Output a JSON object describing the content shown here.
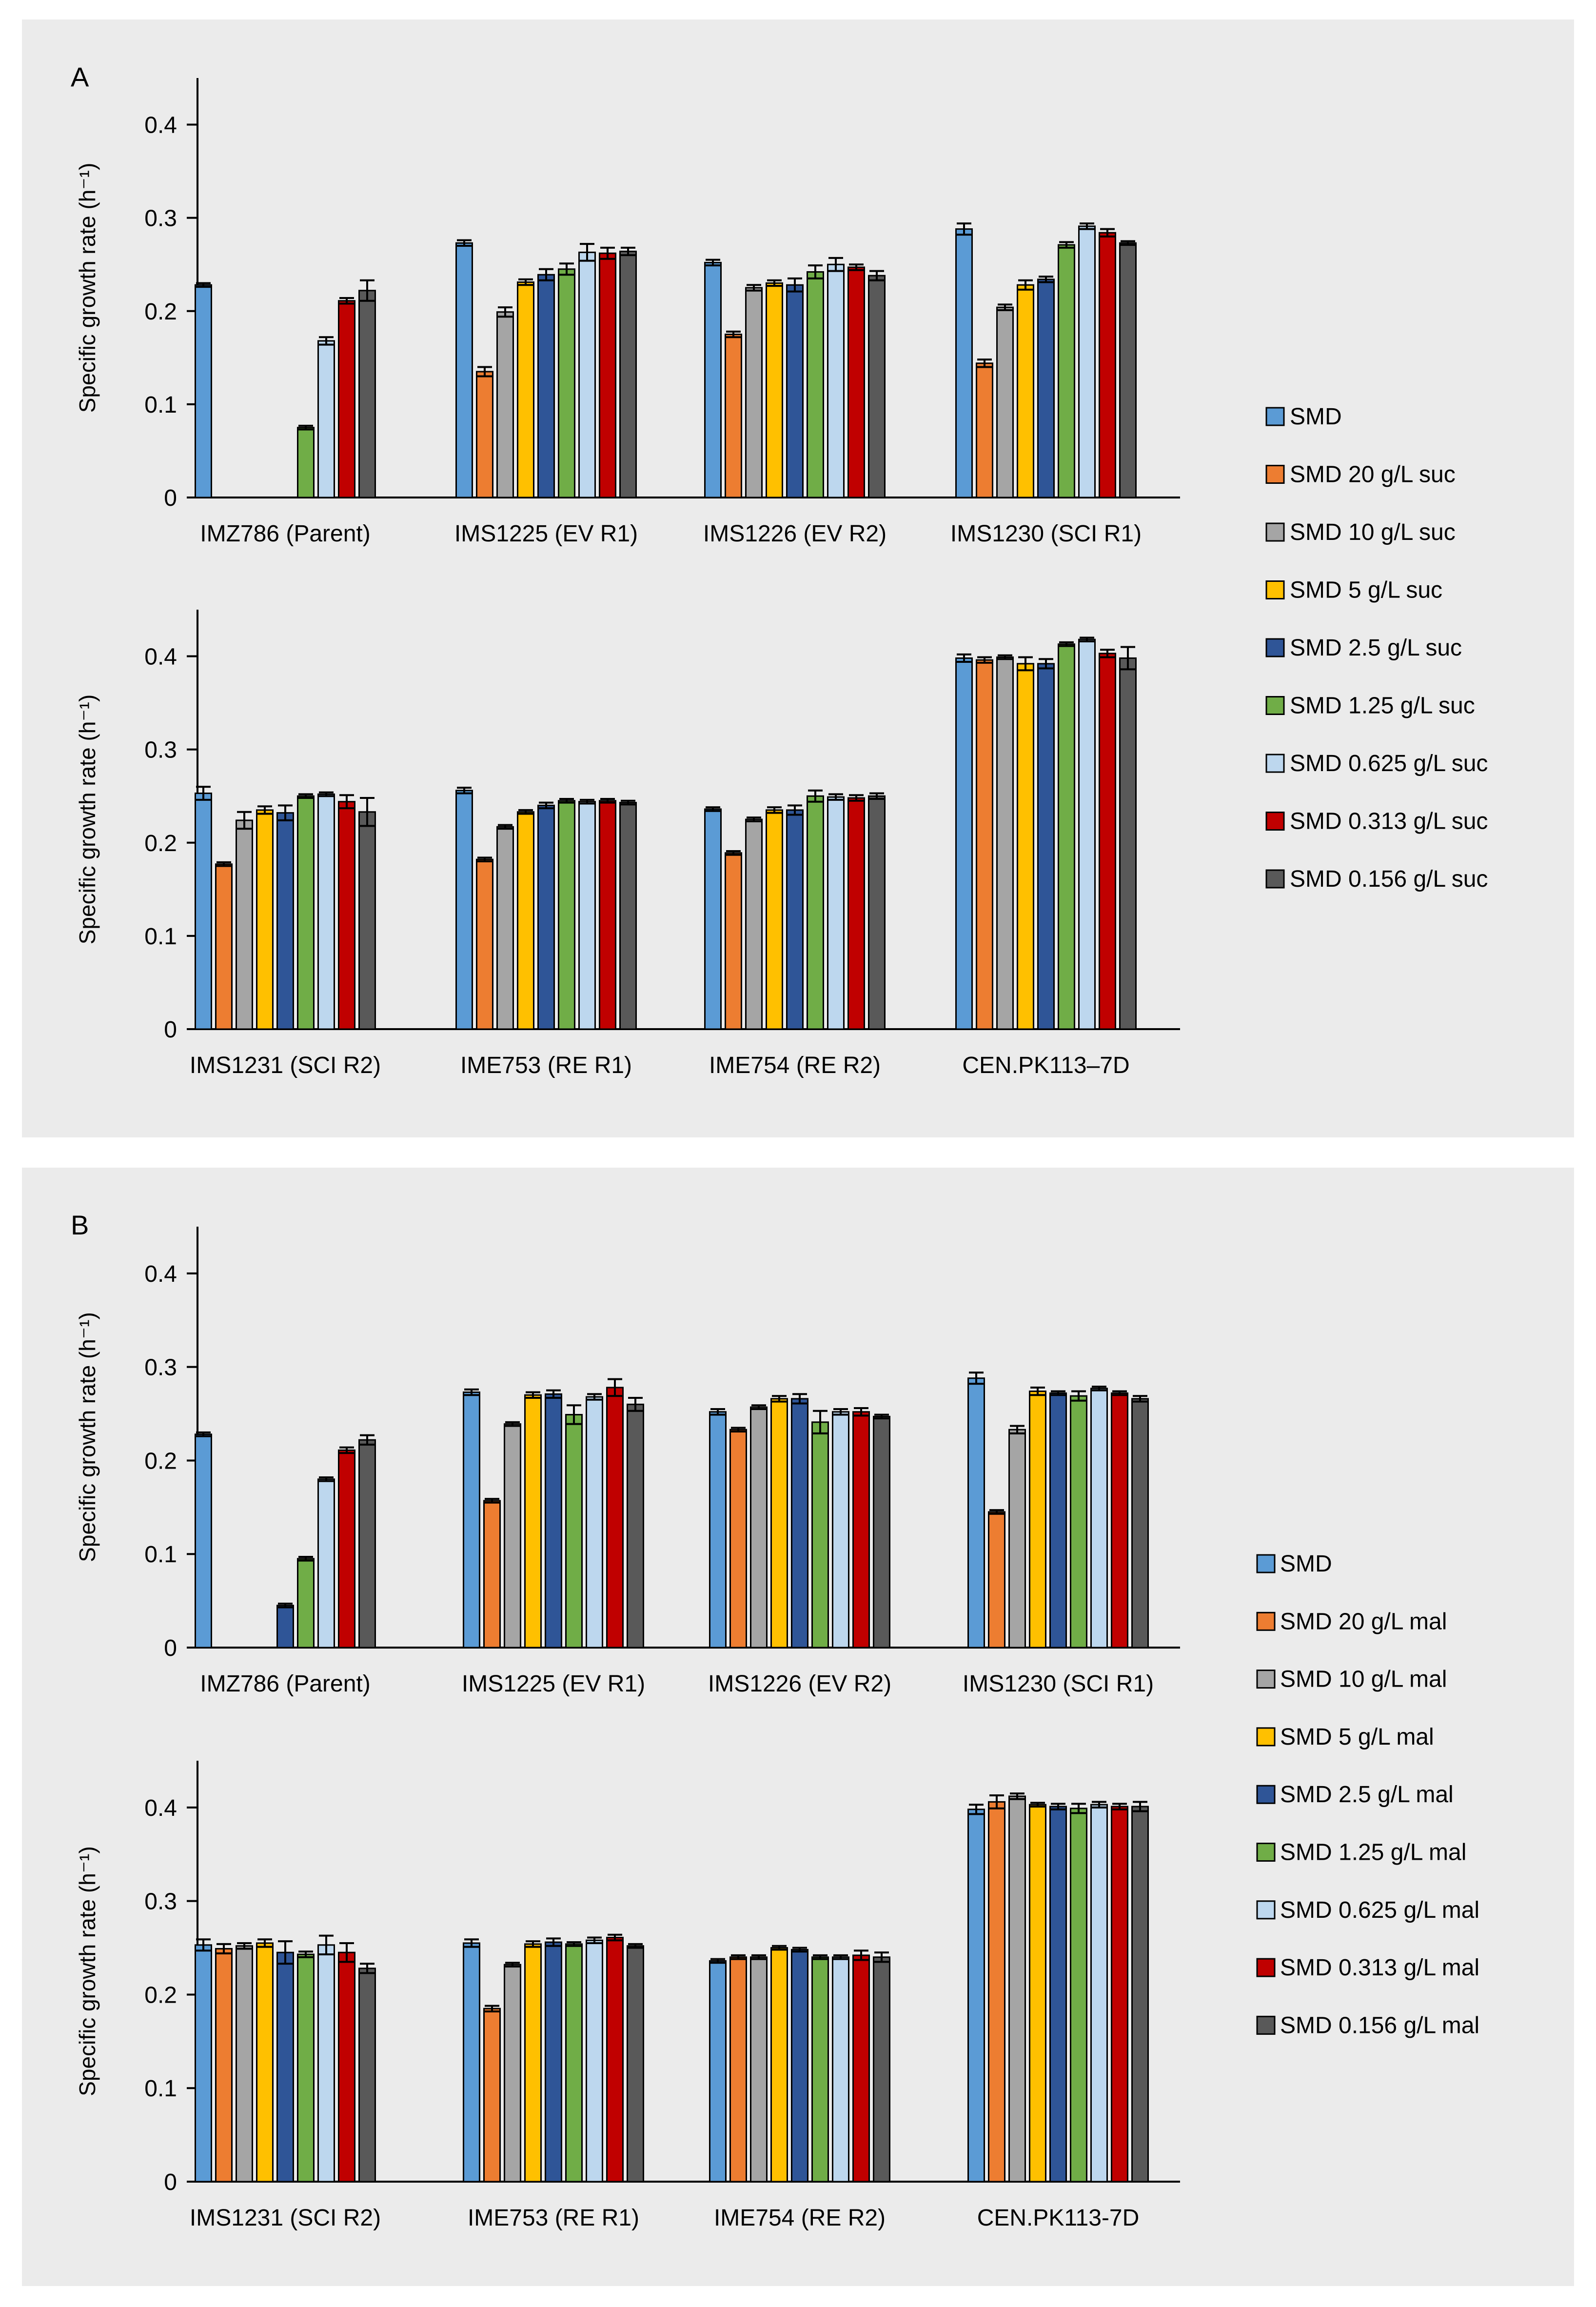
{
  "panels": [
    {
      "letter": "A",
      "legend": [
        "SMD",
        "SMD 20 g/L suc",
        "SMD 10 g/L suc",
        "SMD 5 g/L suc",
        "SMD 2.5 g/L suc",
        "SMD 1.25 g/L suc",
        "SMD 0.625 g/L suc",
        "SMD 0.313 g/L suc",
        "SMD 0.156 g/L suc"
      ],
      "charts": [
        {
          "type": "bar",
          "ylabel": "Specific growth rate (h⁻¹)",
          "ylim": [
            0,
            0.45
          ],
          "yticks": [
            "0",
            "0.1",
            "0.2",
            "0.3",
            "0.4"
          ],
          "categories": [
            "IMZ786 (Parent)",
            "IMS1225 (EV R1)",
            "IMS1226 (EV R2)",
            "IMS1230 (SCI R1)"
          ],
          "values": [
            [
              0.228,
              0,
              0,
              0,
              0,
              0.075,
              0.168,
              0.211,
              0.222
            ],
            [
              0.273,
              0.135,
              0.199,
              0.231,
              0.239,
              0.245,
              0.263,
              0.262,
              0.264
            ],
            [
              0.252,
              0.175,
              0.225,
              0.23,
              0.228,
              0.242,
              0.25,
              0.247,
              0.238
            ],
            [
              0.288,
              0.144,
              0.204,
              0.228,
              0.234,
              0.271,
              0.291,
              0.284,
              0.273
            ]
          ],
          "errors": [
            [
              0.002,
              0,
              0,
              0,
              0,
              0.002,
              0.004,
              0.003,
              0.011
            ],
            [
              0.003,
              0.005,
              0.005,
              0.003,
              0.006,
              0.006,
              0.009,
              0.006,
              0.004
            ],
            [
              0.003,
              0.003,
              0.003,
              0.003,
              0.007,
              0.007,
              0.007,
              0.003,
              0.005
            ],
            [
              0.006,
              0.004,
              0.003,
              0.005,
              0.003,
              0.003,
              0.003,
              0.004,
              0.002
            ]
          ]
        },
        {
          "type": "bar",
          "ylabel": "Specific growth rate (h⁻¹)",
          "ylim": [
            0,
            0.45
          ],
          "yticks": [
            "0",
            "0.1",
            "0.2",
            "0.3",
            "0.4"
          ],
          "categories": [
            "IMS1231 (SCI R2)",
            "IME753 (RE R1)",
            "IME754 (RE R2)",
            "CEN.PK113–7D"
          ],
          "values": [
            [
              0.253,
              0.177,
              0.224,
              0.235,
              0.232,
              0.25,
              0.252,
              0.244,
              0.233
            ],
            [
              0.256,
              0.182,
              0.217,
              0.233,
              0.24,
              0.245,
              0.244,
              0.245,
              0.243
            ],
            [
              0.236,
              0.189,
              0.225,
              0.235,
              0.235,
              0.25,
              0.249,
              0.248,
              0.25
            ],
            [
              0.398,
              0.396,
              0.399,
              0.392,
              0.392,
              0.413,
              0.418,
              0.403,
              0.398
            ]
          ],
          "errors": [
            [
              0.007,
              0.002,
              0.009,
              0.004,
              0.008,
              0.002,
              0.002,
              0.007,
              0.015
            ],
            [
              0.003,
              0.002,
              0.002,
              0.002,
              0.003,
              0.002,
              0.002,
              0.002,
              0.002
            ],
            [
              0.002,
              0.002,
              0.002,
              0.003,
              0.005,
              0.006,
              0.003,
              0.003,
              0.003
            ],
            [
              0.004,
              0.003,
              0.002,
              0.007,
              0.005,
              0.002,
              0.002,
              0.004,
              0.012
            ]
          ]
        }
      ]
    },
    {
      "letter": "B",
      "legend": [
        "SMD",
        "SMD 20 g/L mal",
        "SMD 10 g/L mal",
        "SMD 5 g/L mal",
        "SMD 2.5 g/L mal",
        "SMD 1.25 g/L mal",
        "SMD 0.625 g/L mal",
        "SMD 0.313 g/L mal",
        "SMD 0.156 g/L mal"
      ],
      "charts": [
        {
          "type": "bar",
          "ylabel": "Specific growth rate (h⁻¹)",
          "ylim": [
            0,
            0.45
          ],
          "yticks": [
            "0",
            "0.1",
            "0.2",
            "0.3",
            "0.4"
          ],
          "categories": [
            "IMZ786 (Parent)",
            "IMS1225 (EV R1)",
            "IMS1226 (EV R2)",
            "IMS1230 (SCI R1)"
          ],
          "values": [
            [
              0.228,
              0,
              0,
              0,
              0.045,
              0.095,
              0.18,
              0.211,
              0.222
            ],
            [
              0.273,
              0.157,
              0.239,
              0.27,
              0.271,
              0.249,
              0.268,
              0.278,
              0.26
            ],
            [
              0.252,
              0.233,
              0.257,
              0.266,
              0.266,
              0.241,
              0.252,
              0.252,
              0.247
            ],
            [
              0.288,
              0.145,
              0.233,
              0.274,
              0.272,
              0.269,
              0.277,
              0.272,
              0.266
            ]
          ],
          "errors": [
            [
              0.002,
              0,
              0,
              0,
              0.002,
              0.002,
              0.002,
              0.003,
              0.005
            ],
            [
              0.003,
              0.002,
              0.002,
              0.003,
              0.004,
              0.01,
              0.003,
              0.009,
              0.007
            ],
            [
              0.003,
              0.002,
              0.002,
              0.003,
              0.005,
              0.012,
              0.003,
              0.004,
              0.002
            ],
            [
              0.006,
              0.002,
              0.004,
              0.004,
              0.002,
              0.005,
              0.002,
              0.002,
              0.003
            ]
          ]
        },
        {
          "type": "bar",
          "ylabel": "Specific growth rate (h⁻¹)",
          "ylim": [
            0,
            0.45
          ],
          "yticks": [
            "0",
            "0.1",
            "0.2",
            "0.3",
            "0.4"
          ],
          "categories": [
            "IMS1231 (SCI R2)",
            "IME753 (RE R1)",
            "IME754 (RE R2)",
            "CEN.PK113-7D"
          ],
          "values": [
            [
              0.253,
              0.249,
              0.252,
              0.255,
              0.245,
              0.243,
              0.253,
              0.245,
              0.228
            ],
            [
              0.255,
              0.185,
              0.232,
              0.254,
              0.256,
              0.254,
              0.258,
              0.261,
              0.252
            ],
            [
              0.236,
              0.24,
              0.24,
              0.25,
              0.248,
              0.24,
              0.24,
              0.242,
              0.24
            ],
            [
              0.398,
              0.406,
              0.412,
              0.403,
              0.401,
              0.399,
              0.403,
              0.401,
              0.401
            ]
          ],
          "errors": [
            [
              0.006,
              0.005,
              0.003,
              0.004,
              0.012,
              0.003,
              0.01,
              0.01,
              0.005
            ],
            [
              0.004,
              0.003,
              0.002,
              0.003,
              0.004,
              0.002,
              0.003,
              0.003,
              0.002
            ],
            [
              0.002,
              0.002,
              0.002,
              0.002,
              0.002,
              0.002,
              0.002,
              0.005,
              0.005
            ],
            [
              0.005,
              0.007,
              0.003,
              0.002,
              0.003,
              0.005,
              0.003,
              0.003,
              0.005
            ]
          ]
        }
      ]
    }
  ],
  "chart_data": [
    {
      "type": "bar",
      "panel": "A (top)",
      "ylabel": "Specific growth rate (h⁻¹)",
      "ylim": [
        0,
        0.45
      ],
      "categories": [
        "IMZ786 (Parent)",
        "IMS1225 (EV R1)",
        "IMS1226 (EV R2)",
        "IMS1230 (SCI R1)"
      ],
      "series": [
        {
          "name": "SMD",
          "values": [
            0.228,
            0.273,
            0.252,
            0.288
          ]
        },
        {
          "name": "SMD 20 g/L suc",
          "values": [
            0,
            0.135,
            0.175,
            0.144
          ]
        },
        {
          "name": "SMD 10 g/L suc",
          "values": [
            0,
            0.199,
            0.225,
            0.204
          ]
        },
        {
          "name": "SMD 5 g/L suc",
          "values": [
            0,
            0.231,
            0.23,
            0.228
          ]
        },
        {
          "name": "SMD 2.5 g/L suc",
          "values": [
            0,
            0.239,
            0.228,
            0.234
          ]
        },
        {
          "name": "SMD 1.25 g/L suc",
          "values": [
            0.075,
            0.245,
            0.242,
            0.271
          ]
        },
        {
          "name": "SMD 0.625 g/L suc",
          "values": [
            0.168,
            0.263,
            0.25,
            0.291
          ]
        },
        {
          "name": "SMD 0.313 g/L suc",
          "values": [
            0.211,
            0.262,
            0.247,
            0.284
          ]
        },
        {
          "name": "SMD 0.156 g/L suc",
          "values": [
            0.222,
            0.264,
            0.238,
            0.273
          ]
        }
      ]
    },
    {
      "type": "bar",
      "panel": "A (bottom)",
      "ylabel": "Specific growth rate (h⁻¹)",
      "ylim": [
        0,
        0.45
      ],
      "categories": [
        "IMS1231 (SCI R2)",
        "IME753 (RE R1)",
        "IME754 (RE R2)",
        "CEN.PK113–7D"
      ],
      "series": [
        {
          "name": "SMD",
          "values": [
            0.253,
            0.256,
            0.236,
            0.398
          ]
        },
        {
          "name": "SMD 20 g/L suc",
          "values": [
            0.177,
            0.182,
            0.189,
            0.396
          ]
        },
        {
          "name": "SMD 10 g/L suc",
          "values": [
            0.224,
            0.217,
            0.225,
            0.399
          ]
        },
        {
          "name": "SMD 5 g/L suc",
          "values": [
            0.235,
            0.233,
            0.235,
            0.392
          ]
        },
        {
          "name": "SMD 2.5 g/L suc",
          "values": [
            0.232,
            0.24,
            0.235,
            0.392
          ]
        },
        {
          "name": "SMD 1.25 g/L suc",
          "values": [
            0.25,
            0.245,
            0.25,
            0.413
          ]
        },
        {
          "name": "SMD 0.625 g/L suc",
          "values": [
            0.252,
            0.244,
            0.249,
            0.418
          ]
        },
        {
          "name": "SMD 0.313 g/L suc",
          "values": [
            0.244,
            0.245,
            0.248,
            0.403
          ]
        },
        {
          "name": "SMD 0.156 g/L suc",
          "values": [
            0.233,
            0.243,
            0.25,
            0.398
          ]
        }
      ]
    },
    {
      "type": "bar",
      "panel": "B (top)",
      "ylabel": "Specific growth rate (h⁻¹)",
      "ylim": [
        0,
        0.45
      ],
      "categories": [
        "IMZ786 (Parent)",
        "IMS1225 (EV R1)",
        "IMS1226 (EV R2)",
        "IMS1230 (SCI R1)"
      ],
      "series": [
        {
          "name": "SMD",
          "values": [
            0.228,
            0.273,
            0.252,
            0.288
          ]
        },
        {
          "name": "SMD 20 g/L mal",
          "values": [
            0,
            0.157,
            0.233,
            0.145
          ]
        },
        {
          "name": "SMD 10 g/L mal",
          "values": [
            0,
            0.239,
            0.257,
            0.233
          ]
        },
        {
          "name": "SMD 5 g/L mal",
          "values": [
            0,
            0.27,
            0.266,
            0.274
          ]
        },
        {
          "name": "SMD 2.5 g/L mal",
          "values": [
            0.045,
            0.271,
            0.266,
            0.272
          ]
        },
        {
          "name": "SMD 1.25 g/L mal",
          "values": [
            0.095,
            0.249,
            0.241,
            0.269
          ]
        },
        {
          "name": "SMD 0.625 g/L mal",
          "values": [
            0.18,
            0.268,
            0.252,
            0.277
          ]
        },
        {
          "name": "SMD 0.313 g/L mal",
          "values": [
            0.211,
            0.278,
            0.252,
            0.272
          ]
        },
        {
          "name": "SMD 0.156 g/L mal",
          "values": [
            0.222,
            0.26,
            0.247,
            0.266
          ]
        }
      ]
    },
    {
      "type": "bar",
      "panel": "B (bottom)",
      "ylabel": "Specific growth rate (h⁻¹)",
      "ylim": [
        0,
        0.45
      ],
      "categories": [
        "IMS1231 (SCI R2)",
        "IME753 (RE R1)",
        "IME754 (RE R2)",
        "CEN.PK113-7D"
      ],
      "series": [
        {
          "name": "SMD",
          "values": [
            0.253,
            0.255,
            0.236,
            0.398
          ]
        },
        {
          "name": "SMD 20 g/L mal",
          "values": [
            0.249,
            0.185,
            0.24,
            0.406
          ]
        },
        {
          "name": "SMD 10 g/L mal",
          "values": [
            0.252,
            0.232,
            0.24,
            0.412
          ]
        },
        {
          "name": "SMD 5 g/L mal",
          "values": [
            0.255,
            0.254,
            0.25,
            0.403
          ]
        },
        {
          "name": "SMD 2.5 g/L mal",
          "values": [
            0.245,
            0.256,
            0.248,
            0.401
          ]
        },
        {
          "name": "SMD 1.25 g/L mal",
          "values": [
            0.243,
            0.254,
            0.24,
            0.399
          ]
        },
        {
          "name": "SMD 0.625 g/L mal",
          "values": [
            0.253,
            0.258,
            0.24,
            0.403
          ]
        },
        {
          "name": "SMD 0.313 g/L mal",
          "values": [
            0.245,
            0.261,
            0.242,
            0.401
          ]
        },
        {
          "name": "SMD 0.156 g/L mal",
          "values": [
            0.228,
            0.252,
            0.24,
            0.401
          ]
        }
      ]
    }
  ],
  "colors": {
    "background": "#ffffff",
    "panel": "#ebebeb",
    "series": [
      "#5b9bd5",
      "#ed7d31",
      "#a5a5a5",
      "#ffc000",
      "#2f5597",
      "#70ad47",
      "#bdd7ee",
      "#c00000",
      "#595959"
    ]
  }
}
